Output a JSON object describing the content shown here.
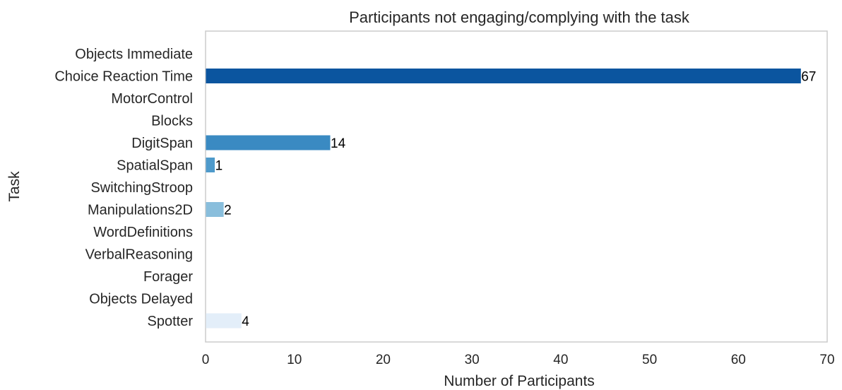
{
  "chart_data": {
    "type": "bar",
    "orientation": "horizontal",
    "title": "Participants not engaging/complying with the task",
    "xlabel": "Number of Participants",
    "ylabel": "Task",
    "xlim": [
      0,
      70
    ],
    "x_ticks": [
      "0",
      "10",
      "20",
      "30",
      "40",
      "50",
      "60",
      "70"
    ],
    "grid": false,
    "categories": [
      "Objects Immediate",
      "Choice Reaction Time",
      "MotorControl",
      "Blocks",
      "DigitSpan",
      "SpatialSpan",
      "SwitchingStroop",
      "Manipulations2D",
      "WordDefinitions",
      "VerbalReasoning",
      "Forager",
      "Objects Delayed",
      "Spotter"
    ],
    "values": [
      0,
      67,
      0,
      0,
      14,
      1,
      0,
      2,
      0,
      0,
      0,
      0,
      4
    ],
    "data_labels": [
      "",
      "67",
      "",
      "",
      "14",
      "1",
      "",
      "2",
      "",
      "",
      "",
      "",
      "4"
    ],
    "colors": [
      "#ffffff",
      "#0b559f",
      "#ffffff",
      "#ffffff",
      "#3a8ac2",
      "#4e9acb",
      "#ffffff",
      "#89bedc",
      "#ffffff",
      "#ffffff",
      "#ffffff",
      "#ffffff",
      "#e3eef9"
    ],
    "frame_color": "#cccccc",
    "text_color": "#262626"
  }
}
